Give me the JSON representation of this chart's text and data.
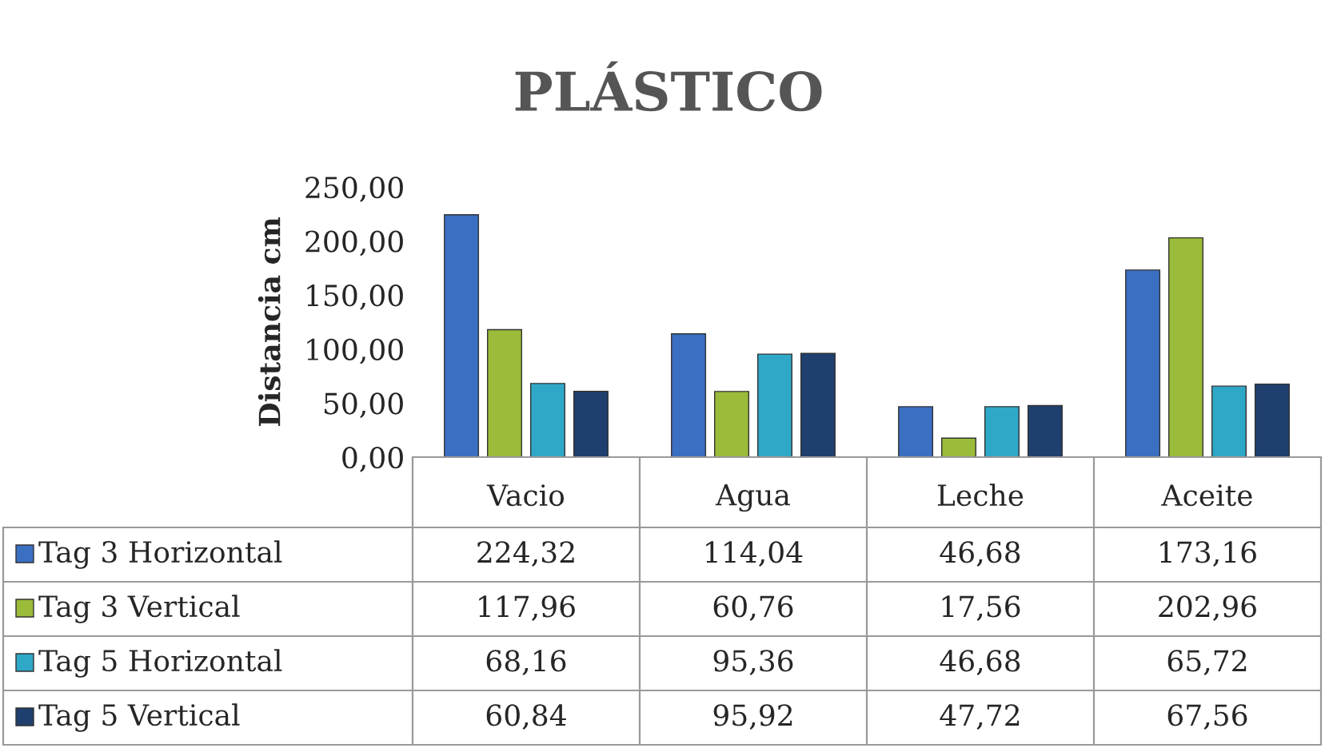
{
  "chart_data": {
    "type": "bar",
    "title": "PLÁSTICO",
    "ylabel": "Distancia cm",
    "categories": [
      "Vacio",
      "Agua",
      "Leche",
      "Aceite"
    ],
    "series": [
      {
        "name": "Tag 3 Horizontal",
        "color": "#3a6fc2",
        "values": [
          224.32,
          114.04,
          46.68,
          173.16
        ],
        "value_labels": [
          "224,32",
          "114,04",
          "46,68",
          "173,16"
        ]
      },
      {
        "name": "Tag 3 Vertical",
        "color": "#9bbb3a",
        "values": [
          117.96,
          60.76,
          17.56,
          202.96
        ],
        "value_labels": [
          "117,96",
          "60,76",
          "17,56",
          "202,96"
        ]
      },
      {
        "name": "Tag 5 Horizontal",
        "color": "#2fa8c8",
        "values": [
          68.16,
          95.36,
          46.68,
          65.72
        ],
        "value_labels": [
          "68,16",
          "95,36",
          "46,68",
          "65,72"
        ]
      },
      {
        "name": "Tag 5 Vertical",
        "color": "#1f3f6e",
        "values": [
          60.84,
          95.92,
          47.72,
          67.56
        ],
        "value_labels": [
          "60,84",
          "95,92",
          "47,72",
          "67,56"
        ]
      }
    ],
    "ylim": [
      0,
      250
    ],
    "yticks": [
      {
        "value": 0,
        "label": "0,00"
      },
      {
        "value": 50,
        "label": "50,00"
      },
      {
        "value": 100,
        "label": "100,00"
      },
      {
        "value": 150,
        "label": "150,00"
      },
      {
        "value": 200,
        "label": "200,00"
      },
      {
        "value": 250,
        "label": "250,00"
      }
    ],
    "grid": false,
    "legend": "bottom"
  }
}
